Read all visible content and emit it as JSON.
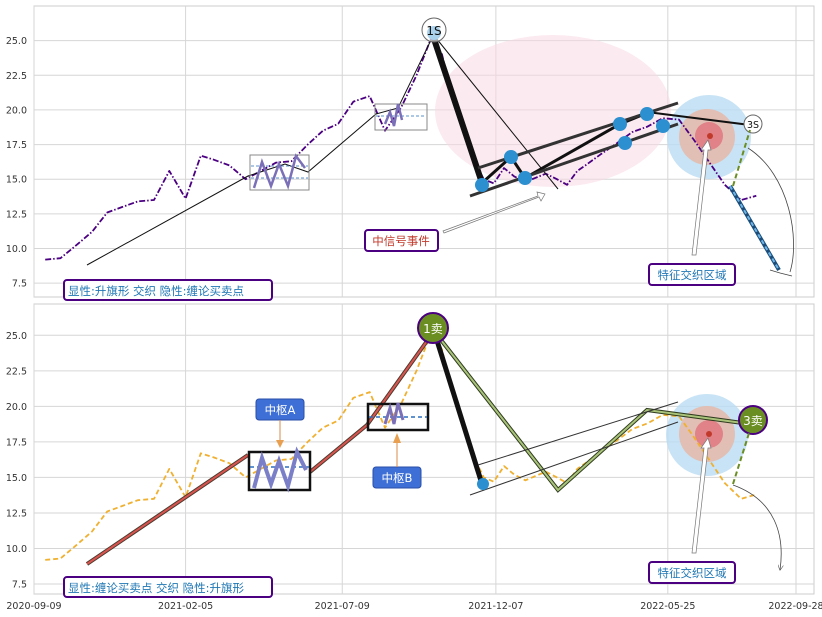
{
  "chart_data": [
    {
      "type": "line",
      "panel": "top",
      "title": "",
      "xlabel": "",
      "ylabel": "",
      "ylim": [
        6.5,
        27.5
      ],
      "yticks": [
        7.5,
        10.0,
        12.5,
        15.0,
        17.5,
        20.0,
        22.5,
        25.0
      ],
      "grid": true,
      "series": [
        {
          "style": "dash-dot",
          "color": "#4b0082",
          "x": [
            "2020-09-20",
            "2020-10-05",
            "2020-10-20",
            "2020-11-05",
            "2020-11-20",
            "2020-12-05",
            "2020-12-20",
            "2021-01-05",
            "2021-01-20",
            "2021-02-05",
            "2021-02-20",
            "2021-03-05",
            "2021-03-20",
            "2021-04-05",
            "2021-04-20",
            "2021-05-05",
            "2021-05-20",
            "2021-06-05",
            "2021-06-20",
            "2021-07-05",
            "2021-07-20",
            "2021-08-05",
            "2021-08-20",
            "2021-09-05",
            "2021-09-20",
            "2021-10-05",
            "2021-10-15",
            "2021-10-25",
            "2021-11-05",
            "2021-11-15",
            "2021-11-25",
            "2021-12-05",
            "2021-12-15",
            "2021-12-25",
            "2022-01-05",
            "2022-01-15",
            "2022-01-25",
            "2022-02-05",
            "2022-02-15",
            "2022-02-25",
            "2022-03-05",
            "2022-03-20",
            "2022-04-05",
            "2022-04-20",
            "2022-05-05",
            "2022-05-20",
            "2022-06-05",
            "2022-06-20",
            "2022-07-05",
            "2022-07-20",
            "2022-08-05",
            "2022-08-20"
          ],
          "values": [
            9.2,
            9.3,
            10.2,
            11.2,
            12.6,
            13.0,
            13.4,
            13.5,
            15.6,
            13.6,
            16.7,
            16.4,
            16.0,
            15.0,
            15.6,
            16.2,
            16.3,
            17.5,
            18.5,
            19.0,
            20.6,
            21.0,
            18.5,
            20.2,
            22.5,
            25.3,
            24.0,
            21.0,
            19.0,
            16.5,
            15.0,
            14.7,
            15.8,
            15.2,
            14.8,
            15.1,
            15.4,
            15.0,
            14.6,
            15.6,
            16.0,
            16.8,
            17.6,
            18.4,
            18.8,
            19.4,
            19.3,
            17.8,
            16.2,
            14.6,
            13.5,
            13.8
          ]
        }
      ],
      "annotations": {
        "sell_markers": [
          "1S",
          "3S"
        ],
        "event_label": "中信号事件",
        "zone_label": "特征交织区域",
        "legend_box": "显性:升旗形 交织 隐性:缠论买卖点"
      }
    },
    {
      "type": "line",
      "panel": "bottom",
      "title": "",
      "xlabel": "",
      "ylabel": "",
      "ylim": [
        6.8,
        27.2
      ],
      "yticks": [
        7.5,
        10.0,
        12.5,
        15.0,
        17.5,
        20.0,
        22.5,
        25.0
      ],
      "xticks": [
        "2020-09-09",
        "2021-02-05",
        "2021-07-09",
        "2021-12-07",
        "2022-05-25",
        "2022-09-28"
      ],
      "grid": true,
      "series": [
        {
          "style": "dashed",
          "color": "#f0b030",
          "x": [
            "2020-09-20",
            "2020-10-05",
            "2020-10-20",
            "2020-11-05",
            "2020-11-20",
            "2020-12-05",
            "2020-12-20",
            "2021-01-05",
            "2021-01-20",
            "2021-02-05",
            "2021-02-20",
            "2021-03-05",
            "2021-03-20",
            "2021-04-05",
            "2021-04-20",
            "2021-05-05",
            "2021-05-20",
            "2021-06-05",
            "2021-06-20",
            "2021-07-05",
            "2021-07-20",
            "2021-08-05",
            "2021-08-20",
            "2021-09-05",
            "2021-09-20",
            "2021-10-05",
            "2021-10-15",
            "2021-10-25",
            "2021-11-05",
            "2021-11-15",
            "2021-11-25",
            "2021-12-05",
            "2021-12-15",
            "2021-12-25",
            "2022-01-05",
            "2022-01-15",
            "2022-01-25",
            "2022-02-05",
            "2022-02-15",
            "2022-02-25",
            "2022-03-05",
            "2022-03-20",
            "2022-04-05",
            "2022-04-20",
            "2022-05-05",
            "2022-05-20",
            "2022-06-05",
            "2022-06-20",
            "2022-07-05",
            "2022-07-20",
            "2022-08-05",
            "2022-08-20"
          ],
          "values": [
            9.2,
            9.3,
            10.2,
            11.2,
            12.6,
            13.0,
            13.4,
            13.5,
            15.6,
            13.6,
            16.7,
            16.4,
            16.0,
            15.0,
            15.6,
            16.2,
            16.3,
            17.5,
            18.5,
            19.0,
            20.6,
            21.0,
            18.5,
            20.2,
            22.5,
            25.3,
            24.0,
            21.0,
            19.0,
            16.5,
            15.0,
            14.7,
            15.8,
            15.2,
            14.8,
            15.1,
            15.4,
            15.0,
            14.6,
            15.6,
            16.0,
            16.8,
            17.6,
            18.4,
            18.8,
            19.4,
            19.3,
            17.8,
            16.2,
            14.6,
            13.5,
            13.8
          ]
        }
      ],
      "annotations": {
        "sell_markers": [
          "1卖",
          "3卖"
        ],
        "pivot_labels": [
          "中枢A",
          "中枢B"
        ],
        "zone_label": "特征交织区域",
        "legend_box": "显性:缠论买卖点 交织 隐性:升旗形"
      }
    }
  ],
  "colors": {
    "top_series": "#4b0082",
    "bottom_series": "#f0b030",
    "annotation_border": "#4b0082",
    "annotation_text": "#1f77b4",
    "event_text": "#c0392b",
    "pivot_fill": "#3d6fd6",
    "sell_marker_fill": "#6b8e23",
    "point_marker": "#2b8fd0",
    "zone_outer": "#b9dcf2",
    "zone_mid": "#e6b9a8",
    "zone_inner": "#e05a6a",
    "event_ellipse": "#f7d9e3"
  }
}
